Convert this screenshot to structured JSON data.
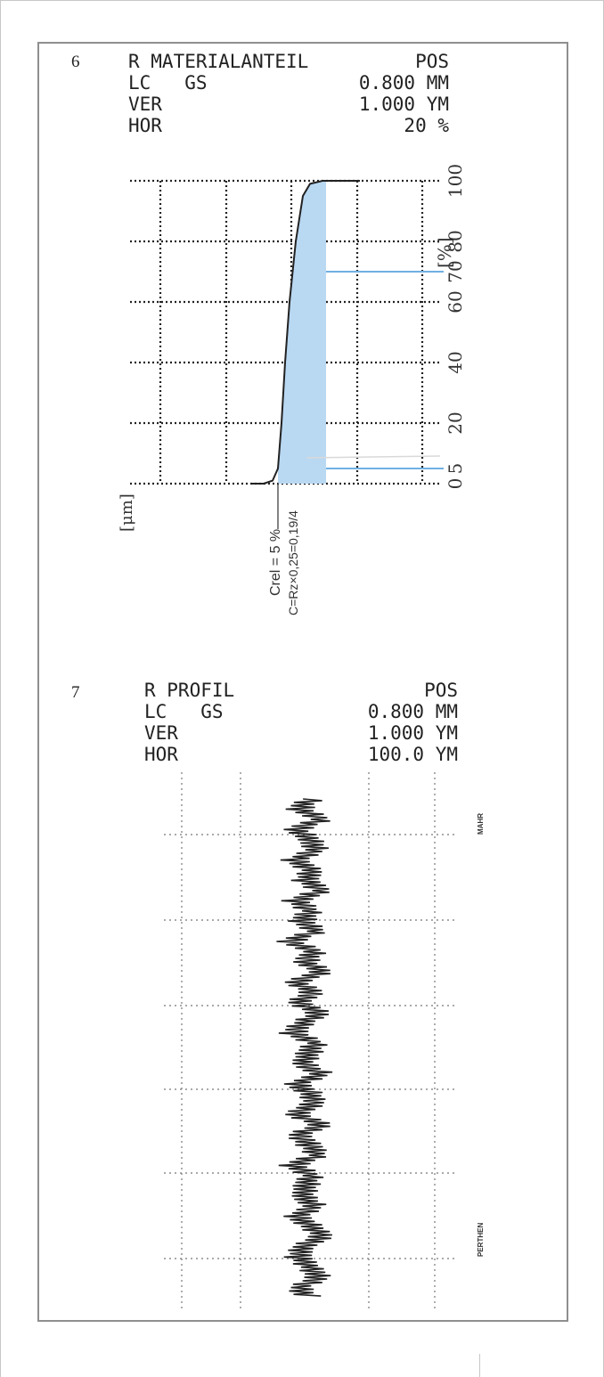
{
  "figure6": {
    "number": "6",
    "header": {
      "line1_left": "R MATERIALANTEIL",
      "line1_right": "POS",
      "line2_left": "LC   GS",
      "line2_right": "0.800 MM",
      "line3_left": "VER",
      "line3_right": "1.000 YM",
      "line4_left": "HOR",
      "line4_right": "20 %"
    },
    "y_unit_label": "[%]",
    "x_unit_label": "[μm]",
    "annotation_cref": "Crel = 5 %",
    "annotation_c": "C=Rz×0,25=0,19/4",
    "colors": {
      "fill": "#b9d8f2",
      "line": "#6fb0e3",
      "curve": "#222222"
    }
  },
  "figure7": {
    "number": "7",
    "header": {
      "line1_left": "R PROFIL",
      "line1_right": "POS",
      "line2_left": "LC   GS",
      "line2_right": "0.800 MM",
      "line3_left": "VER",
      "line3_right": "1.000 YM",
      "line4_left": "HOR",
      "line4_right": "100.0 YM"
    },
    "side_label_top": "MAHR",
    "side_label_bottom": "PERTHEN"
  },
  "chart_data": [
    {
      "type": "line",
      "title": "R MATERIALANTEIL",
      "ylabel": "[%]",
      "xlabel": "[μm]",
      "yticks": [
        0,
        5,
        20,
        40,
        60,
        70,
        80,
        100
      ],
      "ylim": [
        0,
        100
      ],
      "grid": true,
      "series": [
        {
          "values": [
            0,
            0,
            1,
            5,
            20,
            40,
            60,
            80,
            95,
            99,
            100,
            100
          ]
        }
      ],
      "highlight_band": {
        "from_percent": 5,
        "to_percent": 70
      },
      "reference_lines_percent": [
        5,
        70
      ]
    },
    {
      "type": "line",
      "title": "R PROFIL",
      "orientation": "vertical",
      "grid": true,
      "series": [
        {
          "values": [
            0.2,
            -0.3,
            0.6,
            -0.4,
            0.1,
            0.5,
            -0.6,
            0.3,
            -0.1,
            0.7,
            -0.5,
            0.2,
            -0.2,
            0.4,
            -0.7,
            0.3,
            0.0,
            0.6,
            -0.4,
            0.2,
            -0.3,
            0.5,
            -0.1,
            -0.6,
            0.4,
            0.1,
            -0.2,
            0.7,
            -0.5,
            0.3,
            0.2,
            -0.4,
            0.6,
            -0.3,
            0.1,
            0.5,
            -0.6,
            0.2,
            0.0,
            -0.2,
            0.4,
            -0.5,
            0.3,
            0.6,
            -0.1,
            -0.4,
            0.2,
            0.5,
            -0.3,
            0.1
          ]
        }
      ]
    }
  ]
}
